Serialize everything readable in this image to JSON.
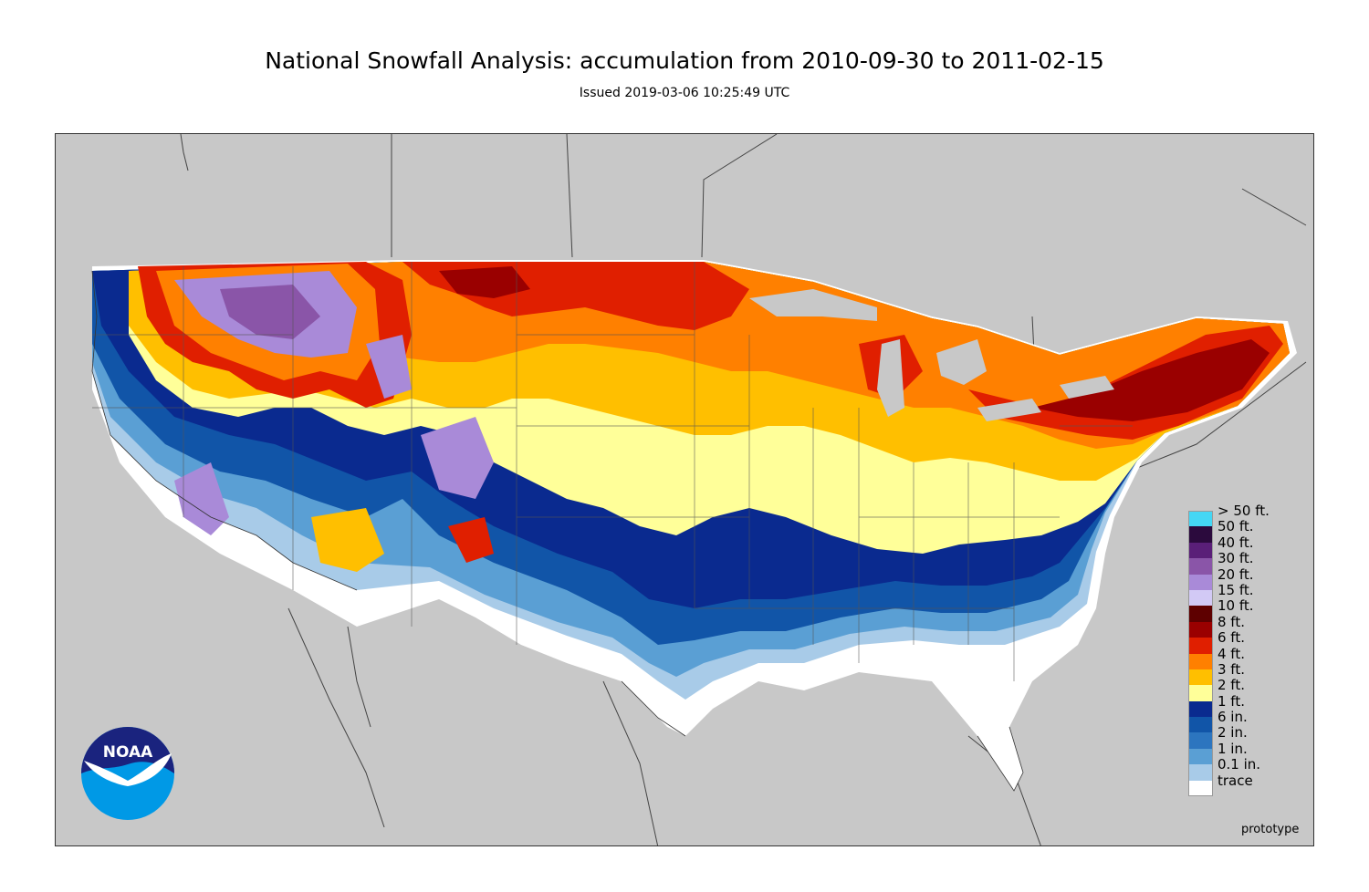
{
  "title": "National Snowfall Analysis: accumulation from 2010-09-30 to 2011-02-15",
  "subtitle": "Issued 2019-03-06 10:25:49 UTC",
  "footer": {
    "note": "prototype"
  },
  "logo": {
    "text": "NOAA",
    "icon": "noaa-logo-icon"
  },
  "map": {
    "background_color": "#c8c8c8",
    "land_outside_color": "#c8c8c8"
  },
  "legend": {
    "items": [
      {
        "label": "> 50 ft.",
        "color": "#44d7f5"
      },
      {
        "label": "50 ft.",
        "color": "#2b0a3d"
      },
      {
        "label": "40 ft.",
        "color": "#5a1f78"
      },
      {
        "label": "30 ft.",
        "color": "#8a55a8"
      },
      {
        "label": "20 ft.",
        "color": "#a98ad8"
      },
      {
        "label": "15 ft.",
        "color": "#d2c9f5"
      },
      {
        "label": "10 ft.",
        "color": "#5e0000"
      },
      {
        "label": "8 ft.",
        "color": "#9a0000"
      },
      {
        "label": "6 ft.",
        "color": "#e01f00"
      },
      {
        "label": "4 ft.",
        "color": "#ff8000"
      },
      {
        "label": "3 ft.",
        "color": "#ffbf00"
      },
      {
        "label": "2 ft.",
        "color": "#ffff99"
      },
      {
        "label": "1 ft.",
        "color": "#0a2a8f"
      },
      {
        "label": "6 in.",
        "color": "#1155a8"
      },
      {
        "label": "2 in.",
        "color": "#2c75bf"
      },
      {
        "label": "1 in.",
        "color": "#5a9fd4"
      },
      {
        "label": "0.1 in.",
        "color": "#a8cbe8"
      },
      {
        "label": "trace",
        "color": "#ffffff"
      }
    ]
  }
}
